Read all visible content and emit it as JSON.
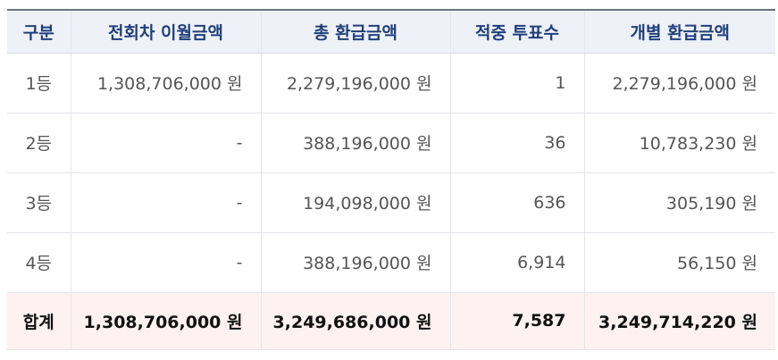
{
  "table": {
    "headers": [
      "구분",
      "전회차 이월금액",
      "총 환급금액",
      "적중 투표수",
      "개별 환급금액"
    ],
    "rows": [
      {
        "rank": "1등",
        "carryover": "1,308,706,000 원",
        "total_refund": "2,279,196,000 원",
        "winning_votes": "1",
        "individual_refund": "2,279,196,000 원"
      },
      {
        "rank": "2등",
        "carryover": "-",
        "total_refund": "388,196,000 원",
        "winning_votes": "36",
        "individual_refund": "10,783,230 원"
      },
      {
        "rank": "3등",
        "carryover": "-",
        "total_refund": "194,098,000 원",
        "winning_votes": "636",
        "individual_refund": "305,190 원"
      },
      {
        "rank": "4등",
        "carryover": "-",
        "total_refund": "388,196,000 원",
        "winning_votes": "6,914",
        "individual_refund": "56,150 원"
      }
    ],
    "total": {
      "rank": "합계",
      "carryover": "1,308,706,000 원",
      "total_refund": "3,249,686,000 원",
      "winning_votes": "7,587",
      "individual_refund": "3,249,714,220 원"
    }
  },
  "colors": {
    "header_bg": "#eef1f8",
    "header_text": "#1f3f7a",
    "total_bg": "#fdf1f2"
  }
}
